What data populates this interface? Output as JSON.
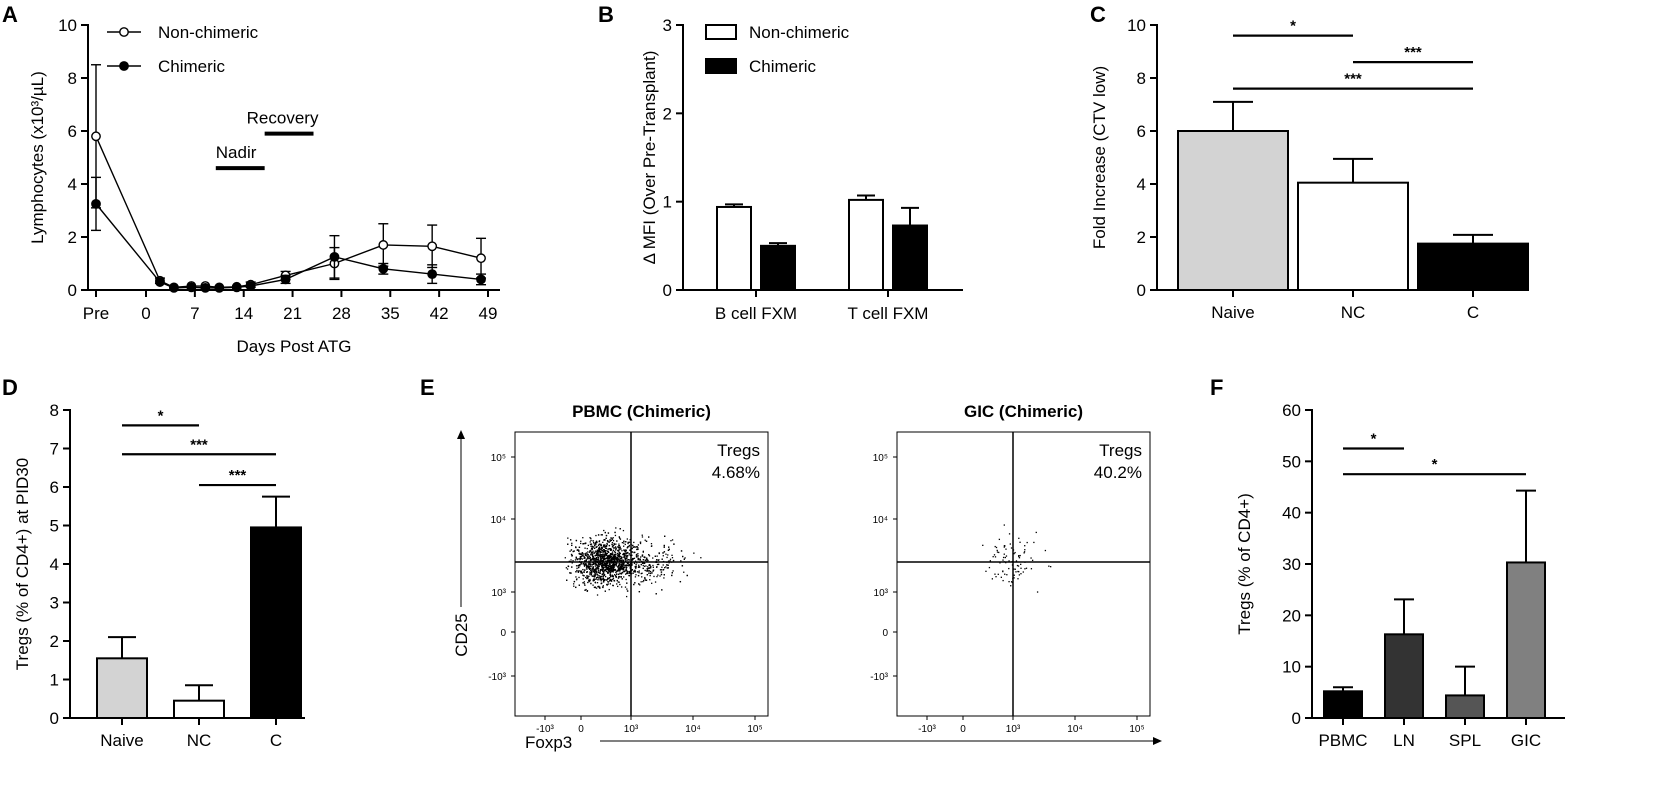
{
  "chart_data": [
    {
      "panel": "A",
      "type": "line",
      "xlabel": "Days Post ATG",
      "ylabel": "Lymphocytes (x10³/µL)",
      "ylim": [
        0,
        10
      ],
      "yticks": [
        "0",
        "2",
        "4",
        "6",
        "8",
        "10"
      ],
      "xtick_labels": [
        "Pre",
        "0",
        "7",
        "14",
        "21",
        "28",
        "35",
        "42",
        "49"
      ],
      "xtick_values": [
        -7,
        0,
        7,
        14,
        21,
        28,
        35,
        42,
        49
      ],
      "legend": [
        "Non-chimeric",
        "Chimeric"
      ],
      "annotations": [
        {
          "text": "Nadir",
          "start": 10,
          "end": 17,
          "y": 4.6
        },
        {
          "text": "Recovery",
          "start": 17,
          "end": 24,
          "y": 5.9
        }
      ],
      "series": [
        {
          "name": "Non-chimeric",
          "marker": "open-circle",
          "x": [
            -7,
            2,
            4,
            6.5,
            8.5,
            10.5,
            13,
            15,
            20,
            27,
            34,
            41,
            48
          ],
          "y": [
            5.8,
            0.35,
            0.1,
            0.15,
            0.15,
            0.1,
            0.12,
            0.2,
            0.55,
            1.0,
            1.7,
            1.65,
            1.2
          ],
          "err": [
            2.7,
            0.1,
            0.05,
            0.05,
            0.05,
            0.05,
            0.05,
            0.1,
            0.15,
            0.6,
            0.8,
            0.8,
            0.75
          ]
        },
        {
          "name": "Chimeric",
          "marker": "filled-circle",
          "x": [
            -7,
            2,
            4,
            6.5,
            8.5,
            10.5,
            13,
            15,
            20,
            27,
            34,
            41,
            48
          ],
          "y": [
            3.25,
            0.3,
            0.08,
            0.1,
            0.08,
            0.08,
            0.1,
            0.15,
            0.4,
            1.25,
            0.8,
            0.6,
            0.4
          ],
          "err": [
            1.0,
            0.08,
            0.04,
            0.04,
            0.04,
            0.04,
            0.04,
            0.05,
            0.15,
            0.8,
            0.2,
            0.35,
            0.2
          ]
        }
      ]
    },
    {
      "panel": "B",
      "type": "bar",
      "ylabel": "Δ MFI (Over Pre-Transplant)",
      "ylim": [
        0,
        3
      ],
      "yticks": [
        "0",
        "1",
        "2",
        "3"
      ],
      "categories": [
        "B cell FXM",
        "T cell FXM"
      ],
      "legend": [
        "Non-chimeric",
        "Chimeric"
      ],
      "series": [
        {
          "name": "Non-chimeric",
          "fill": "#ffffff",
          "values": [
            0.94,
            1.02
          ],
          "err": [
            0.03,
            0.05
          ]
        },
        {
          "name": "Chimeric",
          "fill": "#000000",
          "values": [
            0.5,
            0.73
          ],
          "err": [
            0.03,
            0.2
          ]
        }
      ]
    },
    {
      "panel": "C",
      "type": "bar",
      "ylabel": "Fold Increase (CTV low)",
      "ylim": [
        0,
        10
      ],
      "yticks": [
        "0",
        "2",
        "4",
        "6",
        "8",
        "10"
      ],
      "categories": [
        "Naive",
        "NC",
        "C"
      ],
      "values": [
        6.0,
        4.05,
        1.75
      ],
      "err": [
        1.1,
        0.9,
        0.33
      ],
      "fills": [
        "#d3d3d3",
        "#ffffff",
        "#000000"
      ],
      "significance": [
        {
          "from": 0,
          "to": 1,
          "label": "*",
          "y": 9.6
        },
        {
          "from": 1,
          "to": 2,
          "label": "***",
          "y": 8.6
        },
        {
          "from": 0,
          "to": 2,
          "label": "***",
          "y": 7.6
        }
      ]
    },
    {
      "panel": "D",
      "type": "bar",
      "ylabel": "Tregs (% of CD4+) at PID30",
      "ylim": [
        0,
        8
      ],
      "yticks": [
        "0",
        "1",
        "2",
        "3",
        "4",
        "5",
        "6",
        "7",
        "8"
      ],
      "categories": [
        "Naive",
        "NC",
        "C"
      ],
      "values": [
        1.55,
        0.45,
        4.95
      ],
      "err": [
        0.55,
        0.4,
        0.8
      ],
      "fills": [
        "#d3d3d3",
        "#ffffff",
        "#000000"
      ],
      "significance": [
        {
          "from": 0,
          "to": 1,
          "label": "*",
          "y": 7.6
        },
        {
          "from": 0,
          "to": 2,
          "label": "***",
          "y": 6.85
        },
        {
          "from": 1,
          "to": 2,
          "label": "***",
          "y": 6.05
        }
      ]
    },
    {
      "panel": "E",
      "type": "scatter",
      "xlabel": "Foxp3",
      "ylabel": "CD25",
      "xtick_labels": [
        "-10³",
        "0",
        "10³",
        "10⁴",
        "10⁵"
      ],
      "ytick_labels": [
        "10⁵",
        "10⁴",
        "10³",
        "0",
        "-10³"
      ],
      "plots": [
        {
          "title": "PBMC (Chimeric)",
          "gate_label": "Tregs",
          "gate_value": "4.68%",
          "events": 2000
        },
        {
          "title": "GIC (Chimeric)",
          "gate_label": "Tregs",
          "gate_value": "40.2%",
          "events": 90
        }
      ]
    },
    {
      "panel": "F",
      "type": "bar",
      "ylabel": "Tregs (% of CD4+)",
      "ylim": [
        0,
        60
      ],
      "yticks": [
        "0",
        "10",
        "20",
        "30",
        "40",
        "50",
        "60"
      ],
      "categories": [
        "PBMC",
        "LN",
        "SPL",
        "GIC"
      ],
      "values": [
        5.2,
        16.3,
        4.4,
        30.3
      ],
      "err": [
        0.8,
        6.8,
        5.6,
        14.0
      ],
      "fills": [
        "#000000",
        "#333333",
        "#555555",
        "#808080"
      ],
      "significance": [
        {
          "from": 0,
          "to": 1,
          "label": "*",
          "y": 52.5
        },
        {
          "from": 0,
          "to": 3,
          "label": "*",
          "y": 47.5
        }
      ]
    }
  ]
}
